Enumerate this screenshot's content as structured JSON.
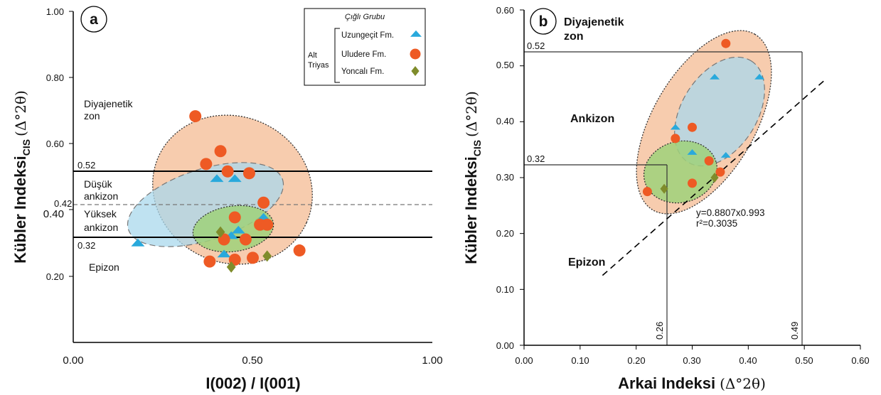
{
  "colors": {
    "orange_fill": "#f6c3a0",
    "blue_fill": "#a9d8ec",
    "green_fill": "#9fd17a",
    "triangle": "#29a9dc",
    "circle": "#ee5a24",
    "diamond": "#7f8c2b"
  },
  "chart_data": [
    {
      "type": "scatter",
      "panel_label": "a",
      "xlabel": "I(002) / I(001)",
      "ylabel_main": "Kübler Indeksi",
      "ylabel_sub": "CIS",
      "ylabel_unit": "(Δ°2θ)",
      "xlim": [
        0.0,
        1.0
      ],
      "ylim": [
        0.1,
        1.0
      ],
      "x_ticks": [
        "0.00",
        "0.50",
        "1.00"
      ],
      "y_ticks": [
        "0.20",
        "0.40",
        "0.60",
        "0.80",
        "1.00"
      ],
      "lines": [
        {
          "y": 0.52,
          "label": "0.52",
          "style": "solid"
        },
        {
          "y": 0.42,
          "label": "0.42",
          "style": "dashed"
        },
        {
          "y": 0.32,
          "label": "0.32",
          "style": "solid"
        }
      ],
      "zones": {
        "diagenetic": [
          "Diyajenetik",
          "zon"
        ],
        "low_anchizone": [
          "Düşük",
          "ankizon"
        ],
        "high_anchizone": [
          "Yüksek",
          "ankizon"
        ],
        "epizone": "Epizon"
      },
      "legend": {
        "title": "Çığlı Grubu",
        "group": [
          "Alt",
          "Triyas"
        ],
        "entries": [
          {
            "name": "Uzungeçit Fm.",
            "marker": "triangle"
          },
          {
            "name": "Uludere Fm.",
            "marker": "circle"
          },
          {
            "name": "Yoncalı Fm.",
            "marker": "diamond"
          }
        ]
      },
      "series": [
        {
          "name": "Uzungeçit Fm.",
          "marker": "triangle",
          "points": [
            [
              0.18,
              0.37
            ],
            [
              0.4,
              0.545
            ],
            [
              0.45,
              0.545
            ],
            [
              0.53,
              0.44
            ],
            [
              0.44,
              0.39
            ],
            [
              0.46,
              0.405
            ],
            [
              0.42,
              0.34
            ]
          ]
        },
        {
          "name": "Uludere Fm.",
          "marker": "circle",
          "points": [
            [
              0.34,
              0.715
            ],
            [
              0.41,
              0.62
            ],
            [
              0.37,
              0.585
            ],
            [
              0.43,
              0.565
            ],
            [
              0.49,
              0.56
            ],
            [
              0.53,
              0.48
            ],
            [
              0.45,
              0.44
            ],
            [
              0.52,
              0.42
            ],
            [
              0.54,
              0.42
            ],
            [
              0.42,
              0.38
            ],
            [
              0.48,
              0.38
            ],
            [
              0.38,
              0.32
            ],
            [
              0.45,
              0.325
            ],
            [
              0.5,
              0.33
            ],
            [
              0.63,
              0.35
            ]
          ]
        },
        {
          "name": "Yoncalı Fm.",
          "marker": "diamond",
          "points": [
            [
              0.41,
              0.4
            ],
            [
              0.54,
              0.335
            ],
            [
              0.44,
              0.305
            ]
          ]
        }
      ]
    },
    {
      "type": "scatter",
      "panel_label": "b",
      "xlabel_main": "Arkai Indeksi",
      "xlabel_unit": "(Δ°2θ)",
      "ylabel_main": "Kübler Indeksi",
      "ylabel_sub": "CIS",
      "ylabel_unit": "(Δ°2θ)",
      "xlim": [
        0.0,
        0.6
      ],
      "ylim": [
        0.0,
        0.6
      ],
      "x_ticks": [
        "0.00",
        "0.10",
        "0.20",
        "0.30",
        "0.40",
        "0.50",
        "0.60"
      ],
      "y_ticks": [
        "0.00",
        "0.10",
        "0.20",
        "0.30",
        "0.40",
        "0.50",
        "0.60"
      ],
      "hlines": [
        {
          "y": 0.52,
          "label": "0.52"
        },
        {
          "y": 0.32,
          "label": "0.32"
        }
      ],
      "vlines": [
        {
          "x": 0.26,
          "label": "0.26"
        },
        {
          "x": 0.49,
          "label": "0.49"
        }
      ],
      "regression": {
        "equation": "y=0.8807x0.993",
        "r2": "r²=0.3035",
        "x_range": [
          0.14,
          0.54
        ]
      },
      "zones": {
        "diagenetic": [
          "Diyajenetik",
          "zon"
        ],
        "anchizone": "Ankizon",
        "epizone": "Epizon"
      },
      "series": [
        {
          "name": "Uzungeçit Fm.",
          "marker": "triangle",
          "points": [
            [
              0.34,
              0.48
            ],
            [
              0.42,
              0.48
            ],
            [
              0.27,
              0.39
            ],
            [
              0.3,
              0.345
            ],
            [
              0.36,
              0.34
            ]
          ]
        },
        {
          "name": "Uludere Fm.",
          "marker": "circle",
          "points": [
            [
              0.36,
              0.54
            ],
            [
              0.3,
              0.39
            ],
            [
              0.27,
              0.37
            ],
            [
              0.33,
              0.33
            ],
            [
              0.35,
              0.31
            ],
            [
              0.3,
              0.29
            ],
            [
              0.22,
              0.275
            ]
          ]
        },
        {
          "name": "Yoncalı Fm.",
          "marker": "diamond",
          "points": [
            [
              0.25,
              0.28
            ],
            [
              0.34,
              0.3
            ]
          ]
        }
      ]
    }
  ]
}
